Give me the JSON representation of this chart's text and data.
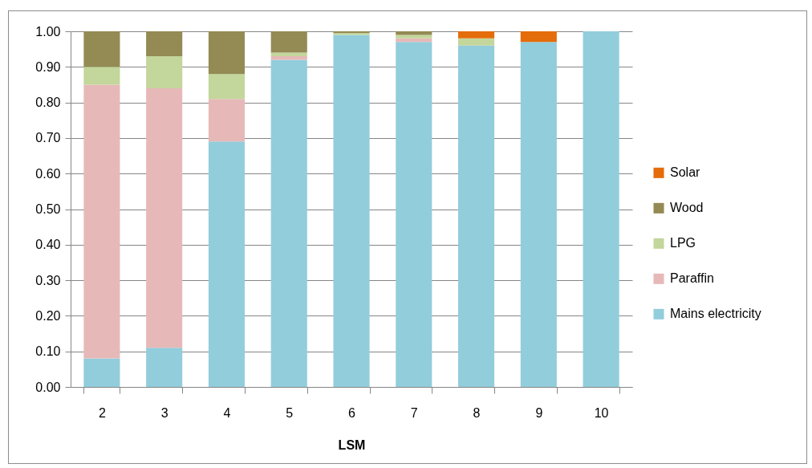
{
  "chart_data": {
    "type": "bar",
    "stacked": true,
    "xlabel": "LSM",
    "categories": [
      "2",
      "3",
      "4",
      "5",
      "6",
      "7",
      "8",
      "9",
      "10"
    ],
    "series": [
      {
        "name": "Mains electricity",
        "color": "#92cddc",
        "values": [
          0.08,
          0.11,
          0.69,
          0.92,
          0.99,
          0.97,
          0.96,
          0.97,
          1.0
        ]
      },
      {
        "name": "Paraffin",
        "color": "#e6b9b8",
        "values": [
          0.77,
          0.73,
          0.12,
          0.01,
          null,
          0.01,
          null,
          null,
          null
        ]
      },
      {
        "name": "LPG",
        "color": "#c3d69b",
        "values": [
          0.05,
          0.09,
          0.07,
          0.01,
          0.005,
          0.01,
          0.02,
          null,
          null
        ]
      },
      {
        "name": "Wood",
        "color": "#948a54",
        "values": [
          0.1,
          0.07,
          0.12,
          0.06,
          0.005,
          0.01,
          null,
          null,
          null
        ]
      },
      {
        "name": "Solar",
        "color": "#e46c0a",
        "values": [
          null,
          null,
          null,
          null,
          null,
          null,
          0.02,
          0.03,
          null
        ]
      }
    ],
    "ylim": [
      0,
      1
    ],
    "yticks": [
      {
        "value": 0,
        "label": "0.00"
      },
      {
        "value": 0.1,
        "label": "0.10"
      },
      {
        "value": 0.2,
        "label": "0.20"
      },
      {
        "value": 0.3,
        "label": "0.30"
      },
      {
        "value": 0.4,
        "label": "0.40"
      },
      {
        "value": 0.5,
        "label": "0.50"
      },
      {
        "value": 0.6,
        "label": "0.60"
      },
      {
        "value": 0.7,
        "label": "0.70"
      },
      {
        "value": 0.8,
        "label": "0.80"
      },
      {
        "value": 0.9,
        "label": "0.90"
      },
      {
        "value": 1,
        "label": "1.00"
      }
    ],
    "grid": "y",
    "legend": "right"
  }
}
